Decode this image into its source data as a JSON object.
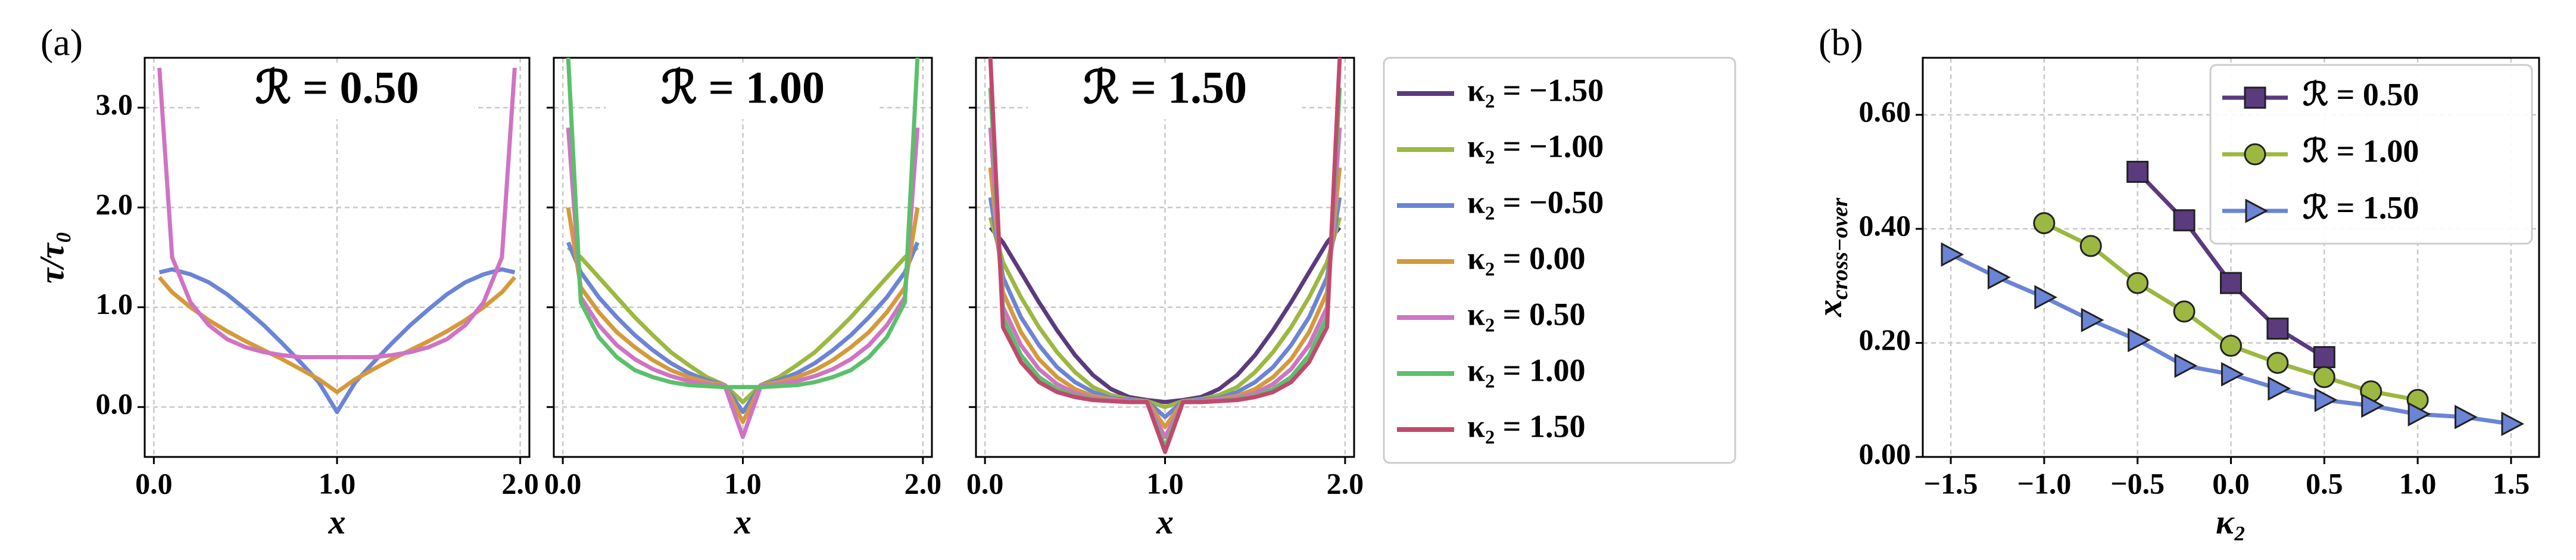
{
  "chart_data": [
    {
      "type": "line",
      "panel_label": "(a)",
      "title": "ℛ = 0.50",
      "xlabel": "x",
      "ylabel": "τ/τ₀",
      "xlim": [
        -0.05,
        2.05
      ],
      "ylim": [
        -0.5,
        3.5
      ],
      "xticks": [
        {
          "value": 0,
          "label": "0.0"
        },
        {
          "value": 1,
          "label": "1.0"
        },
        {
          "value": 2,
          "label": "2.0"
        }
      ],
      "yticks": [
        {
          "value": 0,
          "label": "0.0"
        },
        {
          "value": 1,
          "label": "1.0"
        },
        {
          "value": 2,
          "label": "2.0"
        },
        {
          "value": 3,
          "label": "3.0"
        }
      ],
      "grid": true,
      "x": [
        0.03,
        0.1,
        0.2,
        0.3,
        0.4,
        0.5,
        0.6,
        0.7,
        0.8,
        0.9,
        1.0,
        1.1,
        1.2,
        1.3,
        1.4,
        1.5,
        1.6,
        1.7,
        1.8,
        1.9,
        1.97
      ],
      "series": [
        {
          "color": "#6b84d6",
          "values": [
            1.35,
            1.38,
            1.33,
            1.25,
            1.13,
            0.98,
            0.82,
            0.64,
            0.45,
            0.25,
            -0.05,
            0.25,
            0.45,
            0.64,
            0.82,
            0.98,
            1.13,
            1.25,
            1.33,
            1.38,
            1.35
          ]
        },
        {
          "color": "#d49a3a",
          "values": [
            1.3,
            1.15,
            1.0,
            0.87,
            0.76,
            0.66,
            0.57,
            0.48,
            0.38,
            0.28,
            0.15,
            0.28,
            0.38,
            0.48,
            0.57,
            0.66,
            0.76,
            0.87,
            1.0,
            1.15,
            1.3
          ]
        },
        {
          "color": "#cf73c4",
          "values": [
            3.4,
            1.5,
            1.05,
            0.82,
            0.68,
            0.6,
            0.55,
            0.52,
            0.5,
            0.5,
            0.5,
            0.5,
            0.5,
            0.52,
            0.55,
            0.6,
            0.68,
            0.82,
            1.05,
            1.5,
            3.4
          ]
        }
      ]
    },
    {
      "type": "line",
      "title": "ℛ = 1.00",
      "xlabel": "x",
      "xlim": [
        -0.05,
        2.05
      ],
      "ylim": [
        -0.5,
        3.5
      ],
      "xticks": [
        {
          "value": 0,
          "label": "0.0"
        },
        {
          "value": 1,
          "label": "1.0"
        },
        {
          "value": 2,
          "label": "2.0"
        }
      ],
      "yticks": [
        0,
        1,
        2,
        3
      ],
      "grid": true,
      "x": [
        0.03,
        0.1,
        0.2,
        0.3,
        0.4,
        0.5,
        0.6,
        0.7,
        0.8,
        0.9,
        1.0,
        1.1,
        1.2,
        1.3,
        1.4,
        1.5,
        1.6,
        1.7,
        1.8,
        1.9,
        1.97
      ],
      "series": [
        {
          "color": "#9cb840",
          "values": [
            1.6,
            1.5,
            1.3,
            1.1,
            0.9,
            0.72,
            0.55,
            0.42,
            0.3,
            0.22,
            0.05,
            0.22,
            0.3,
            0.42,
            0.55,
            0.72,
            0.9,
            1.1,
            1.3,
            1.5,
            1.6
          ]
        },
        {
          "color": "#6b84d6",
          "values": [
            1.65,
            1.35,
            1.1,
            0.9,
            0.72,
            0.57,
            0.44,
            0.34,
            0.27,
            0.22,
            -0.05,
            0.22,
            0.27,
            0.34,
            0.44,
            0.57,
            0.72,
            0.9,
            1.1,
            1.35,
            1.65
          ]
        },
        {
          "color": "#d49a3a",
          "values": [
            2.0,
            1.2,
            0.95,
            0.75,
            0.6,
            0.47,
            0.37,
            0.3,
            0.25,
            0.22,
            -0.15,
            0.22,
            0.25,
            0.3,
            0.37,
            0.47,
            0.6,
            0.75,
            0.95,
            1.2,
            2.0
          ]
        },
        {
          "color": "#cf73c4",
          "values": [
            2.8,
            1.1,
            0.82,
            0.62,
            0.48,
            0.38,
            0.31,
            0.26,
            0.23,
            0.21,
            -0.3,
            0.21,
            0.23,
            0.26,
            0.31,
            0.38,
            0.48,
            0.62,
            0.82,
            1.1,
            2.8
          ]
        },
        {
          "color": "#5cbf6b",
          "values": [
            3.5,
            1.05,
            0.7,
            0.5,
            0.37,
            0.3,
            0.25,
            0.22,
            0.21,
            0.2,
            0.2,
            0.2,
            0.21,
            0.22,
            0.25,
            0.3,
            0.37,
            0.5,
            0.7,
            1.05,
            3.5
          ]
        }
      ]
    },
    {
      "type": "line",
      "title": "ℛ = 1.50",
      "xlabel": "x",
      "legend": "outside right",
      "xlim": [
        -0.05,
        2.05
      ],
      "ylim": [
        -0.5,
        3.5
      ],
      "xticks": [
        {
          "value": 0,
          "label": "0.0"
        },
        {
          "value": 1,
          "label": "1.0"
        },
        {
          "value": 2,
          "label": "2.0"
        }
      ],
      "yticks": [
        0,
        1,
        2,
        3
      ],
      "grid": true,
      "x": [
        0.03,
        0.1,
        0.2,
        0.3,
        0.4,
        0.5,
        0.6,
        0.7,
        0.8,
        0.9,
        1.0,
        1.1,
        1.2,
        1.3,
        1.4,
        1.5,
        1.6,
        1.7,
        1.8,
        1.9,
        1.97
      ],
      "series": [
        {
          "name": "κ₂ = −1.50",
          "color": "#5b3a7e",
          "values": [
            1.8,
            1.65,
            1.35,
            1.05,
            0.77,
            0.52,
            0.32,
            0.18,
            0.1,
            0.07,
            0.05,
            0.07,
            0.1,
            0.18,
            0.32,
            0.52,
            0.77,
            1.05,
            1.35,
            1.65,
            1.8
          ]
        },
        {
          "name": "κ₂ = −1.00",
          "color": "#9cb840",
          "values": [
            1.9,
            1.45,
            1.1,
            0.8,
            0.55,
            0.35,
            0.2,
            0.12,
            0.08,
            0.06,
            0.0,
            0.06,
            0.08,
            0.12,
            0.2,
            0.35,
            0.55,
            0.8,
            1.1,
            1.45,
            1.9
          ]
        },
        {
          "name": "κ₂ = −0.50",
          "color": "#6b84d6",
          "values": [
            2.1,
            1.3,
            0.9,
            0.62,
            0.4,
            0.25,
            0.15,
            0.09,
            0.07,
            0.06,
            -0.1,
            0.06,
            0.07,
            0.09,
            0.15,
            0.25,
            0.4,
            0.62,
            0.9,
            1.3,
            2.1
          ]
        },
        {
          "name": "κ₂ = 0.00",
          "color": "#d49a3a",
          "values": [
            2.4,
            1.15,
            0.75,
            0.48,
            0.3,
            0.18,
            0.11,
            0.08,
            0.06,
            0.06,
            -0.2,
            0.06,
            0.06,
            0.08,
            0.11,
            0.18,
            0.3,
            0.48,
            0.75,
            1.15,
            2.4
          ]
        },
        {
          "name": "κ₂ = 0.50",
          "color": "#cf73c4",
          "values": [
            2.8,
            1.0,
            0.62,
            0.38,
            0.23,
            0.14,
            0.09,
            0.07,
            0.06,
            0.05,
            -0.3,
            0.05,
            0.06,
            0.07,
            0.09,
            0.14,
            0.23,
            0.38,
            0.62,
            1.0,
            2.8
          ]
        },
        {
          "name": "κ₂ = 1.00",
          "color": "#5cbf6b",
          "values": [
            3.2,
            0.9,
            0.52,
            0.3,
            0.18,
            0.11,
            0.08,
            0.06,
            0.05,
            0.05,
            -0.4,
            0.05,
            0.05,
            0.06,
            0.08,
            0.11,
            0.18,
            0.3,
            0.52,
            0.9,
            3.2
          ]
        },
        {
          "name": "κ₂ = 1.50",
          "color": "#c04a6e",
          "values": [
            3.5,
            0.8,
            0.45,
            0.25,
            0.15,
            0.1,
            0.07,
            0.06,
            0.05,
            0.05,
            -0.45,
            0.05,
            0.05,
            0.06,
            0.07,
            0.1,
            0.15,
            0.25,
            0.45,
            0.8,
            3.5
          ]
        }
      ]
    },
    {
      "type": "line",
      "panel_label": "(b)",
      "xlabel": "κ₂",
      "ylabel": [
        "x",
        "cross−over"
      ],
      "legend": "upper right",
      "xlim": [
        -1.65,
        1.65
      ],
      "ylim": [
        0,
        0.7
      ],
      "xticks": [
        {
          "value": -1.5,
          "label": "−1.5"
        },
        {
          "value": -1,
          "label": "−1.0"
        },
        {
          "value": -0.5,
          "label": "−0.5"
        },
        {
          "value": 0,
          "label": "0.0"
        },
        {
          "value": 0.5,
          "label": "0.5"
        },
        {
          "value": 1,
          "label": "1.0"
        },
        {
          "value": 1.5,
          "label": "1.5"
        }
      ],
      "yticks": [
        {
          "value": 0,
          "label": "0.00"
        },
        {
          "value": 0.2,
          "label": "0.20"
        },
        {
          "value": 0.4,
          "label": "0.40"
        },
        {
          "value": 0.6,
          "label": "0.60"
        }
      ],
      "grid": true,
      "series": [
        {
          "name": "ℛ = 0.50",
          "color": "#5b3a7e",
          "marker": "square",
          "x": [
            -0.5,
            -0.25,
            0,
            0.25,
            0.5
          ],
          "values": [
            0.5,
            0.415,
            0.305,
            0.225,
            0.175
          ]
        },
        {
          "name": "ℛ = 1.00",
          "color": "#9cb840",
          "marker": "circle",
          "x": [
            -1,
            -0.75,
            -0.5,
            -0.25,
            0,
            0.25,
            0.5,
            0.75,
            1
          ],
          "values": [
            0.41,
            0.37,
            0.305,
            0.255,
            0.195,
            0.165,
            0.14,
            0.115,
            0.1
          ]
        },
        {
          "name": "ℛ = 1.50",
          "color": "#6b84d6",
          "marker": "triangle-right",
          "x": [
            -1.5,
            -1.25,
            -1,
            -0.75,
            -0.5,
            -0.25,
            0,
            0.25,
            0.5,
            0.75,
            1,
            1.25,
            1.5
          ],
          "values": [
            0.355,
            0.315,
            0.28,
            0.24,
            0.205,
            0.16,
            0.145,
            0.12,
            0.1,
            0.09,
            0.075,
            0.07,
            0.058
          ]
        }
      ]
    }
  ]
}
